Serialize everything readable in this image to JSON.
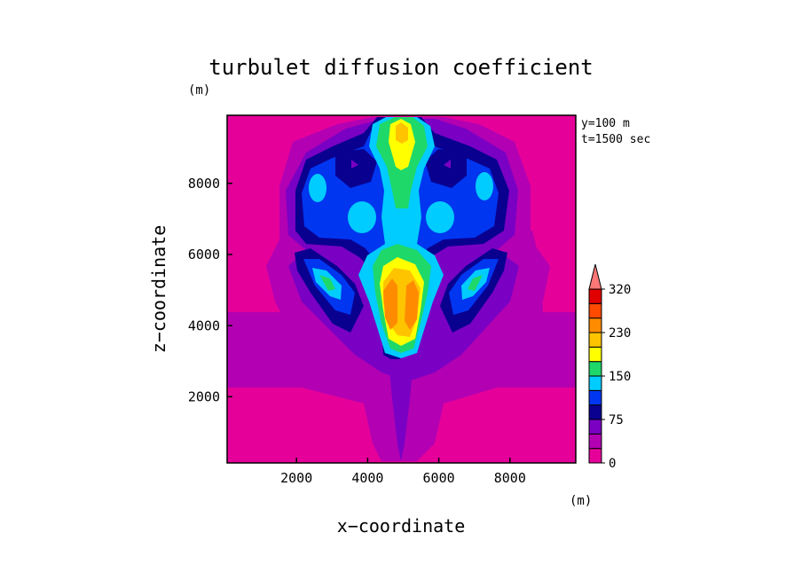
{
  "chart_data": {
    "type": "heatmap",
    "title": "turbulet diffusion coefficient",
    "xlabel": "x−coordinate",
    "ylabel": "z−coordinate",
    "x_unit": "(m)",
    "y_unit": "(m)",
    "annotation_lines": [
      "y=100 m",
      "t=1500 sec"
    ],
    "xlim": [
      0,
      9800
    ],
    "ylim": [
      100,
      9800
    ],
    "x_ticks": [
      2000,
      4000,
      6000,
      8000
    ],
    "y_ticks": [
      2000,
      4000,
      6000,
      8000
    ],
    "colorbar": {
      "levels": [
        0,
        25,
        50,
        75,
        100,
        125,
        150,
        175,
        200,
        230,
        260,
        290,
        320
      ],
      "tick_labels": [
        "0",
        "75",
        "150",
        "230",
        "320"
      ],
      "tick_values": [
        0,
        75,
        150,
        230,
        320
      ],
      "colors": [
        "#e6009a",
        "#b300b3",
        "#7a00c4",
        "#0a008f",
        "#0036f0",
        "#00ccff",
        "#1ed86a",
        "#ffff00",
        "#ffc400",
        "#ff8c00",
        "#ff4a00",
        "#e00000",
        "#ff7777"
      ],
      "extend": "max"
    }
  }
}
